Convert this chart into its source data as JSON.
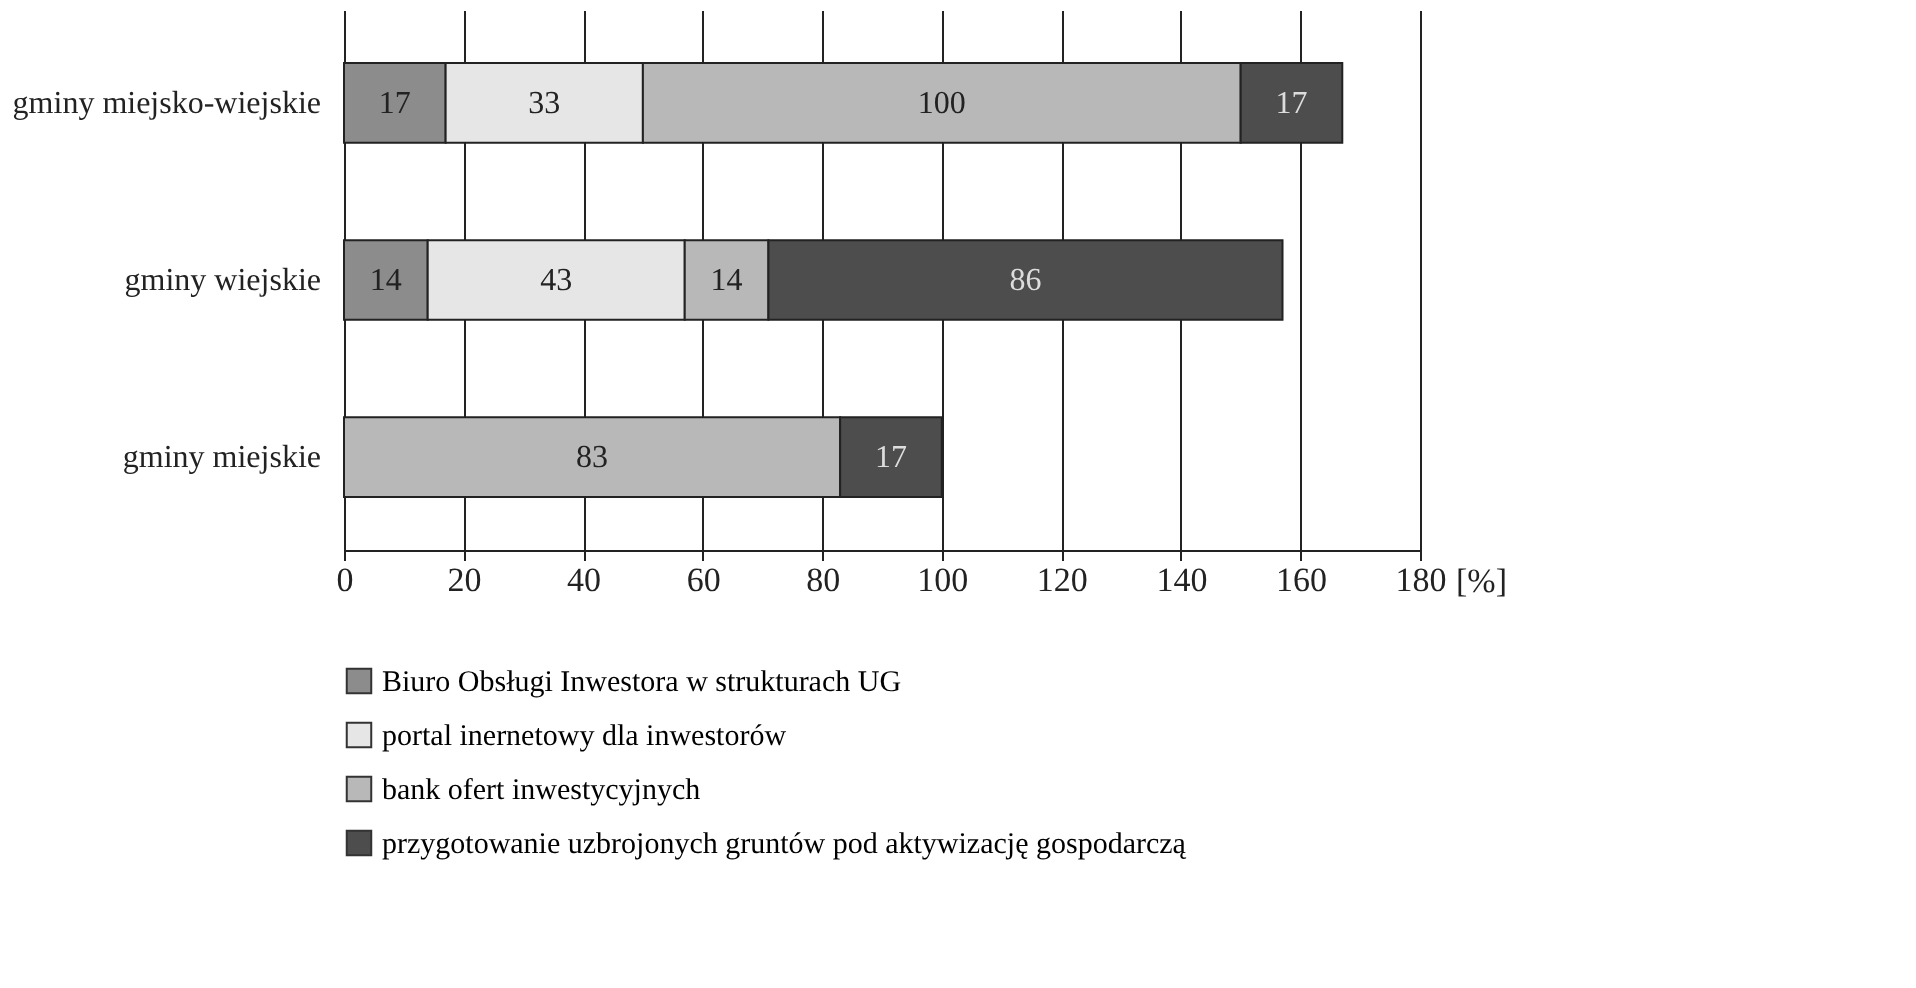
{
  "chart_data": {
    "type": "bar",
    "orientation": "horizontal",
    "stacked": true,
    "data_labels": true,
    "grid": "x",
    "legend": "bottom",
    "xlabel": "[%]",
    "categories": [
      "gminy miejsko-wiejskie",
      "gminy wiejskie",
      "gminy miejskie"
    ],
    "xlim": [
      0,
      180
    ],
    "xticks": [
      0,
      20,
      40,
      60,
      80,
      100,
      120,
      140,
      160,
      180
    ],
    "series": [
      {
        "name": "Biuro Obsługi Inwestora w strukturach UG",
        "color": "#8c8c8c",
        "values": [
          17,
          14,
          null
        ]
      },
      {
        "name": "portal inernetowy dla inwestorów",
        "color": "#e6e6e6",
        "values": [
          33,
          43,
          null
        ]
      },
      {
        "name": "bank ofert inwestycyjnych",
        "color": "#b8b8b8",
        "values": [
          100,
          14,
          83
        ]
      },
      {
        "name": "przygotowanie uzbrojonych gruntów pod aktywizację gospodarczą",
        "color": "#4d4d4d",
        "values": [
          17,
          86,
          17
        ]
      }
    ]
  }
}
